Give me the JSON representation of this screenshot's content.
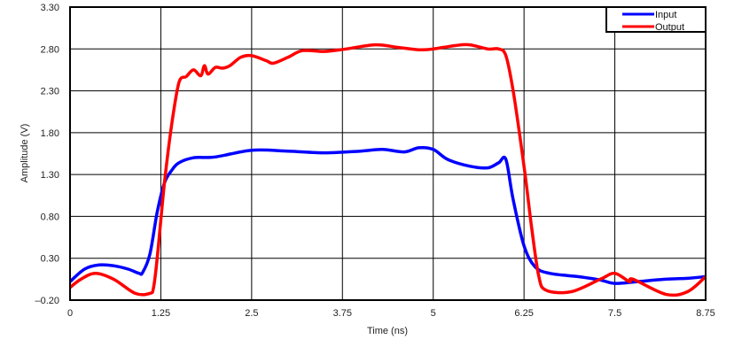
{
  "chart_data": {
    "type": "line",
    "title": "",
    "xlabel": "Time (ns)",
    "ylabel": "Amplitude (V)",
    "xlim": [
      0,
      8.75
    ],
    "ylim": [
      -0.2,
      3.3
    ],
    "grid": true,
    "legend_position": "top-right",
    "x_ticks": [
      "0",
      "1.25",
      "2.5",
      "3.75",
      "5",
      "6.25",
      "7.5",
      "8.75"
    ],
    "y_ticks": [
      "3.30",
      "2.80",
      "2.30",
      "1.80",
      "1.30",
      "0.80",
      "0.30",
      "-0.20"
    ],
    "series": [
      {
        "name": "Input",
        "color": "#0000ff",
        "x": [
          0,
          0.2,
          0.4,
          0.6,
          0.8,
          0.95,
          1.0,
          1.1,
          1.2,
          1.3,
          1.4,
          1.5,
          1.7,
          2.0,
          2.5,
          3.0,
          3.5,
          4.0,
          4.3,
          4.6,
          4.8,
          5.0,
          5.2,
          5.5,
          5.75,
          5.9,
          6.0,
          6.1,
          6.25,
          6.4,
          6.6,
          7.0,
          7.3,
          7.5,
          7.8,
          8.2,
          8.5,
          8.75
        ],
        "values": [
          0.02,
          0.17,
          0.22,
          0.21,
          0.17,
          0.12,
          0.13,
          0.35,
          0.85,
          1.2,
          1.35,
          1.44,
          1.5,
          1.51,
          1.59,
          1.58,
          1.56,
          1.58,
          1.6,
          1.57,
          1.62,
          1.6,
          1.48,
          1.4,
          1.38,
          1.44,
          1.48,
          1.0,
          0.45,
          0.2,
          0.12,
          0.08,
          0.04,
          0.0,
          0.02,
          0.05,
          0.06,
          0.08
        ]
      },
      {
        "name": "Output",
        "color": "#ff0000",
        "x": [
          0,
          0.15,
          0.35,
          0.6,
          0.9,
          1.1,
          1.15,
          1.2,
          1.3,
          1.4,
          1.5,
          1.6,
          1.7,
          1.8,
          1.85,
          1.9,
          2.0,
          2.1,
          2.2,
          2.35,
          2.5,
          2.7,
          2.8,
          3.0,
          3.2,
          3.5,
          3.8,
          4.2,
          4.5,
          4.8,
          5.0,
          5.3,
          5.5,
          5.75,
          5.9,
          6.0,
          6.1,
          6.25,
          6.35,
          6.45,
          6.55,
          6.9,
          7.3,
          7.5,
          7.7,
          7.75,
          8.2,
          8.5,
          8.75
        ],
        "values": [
          -0.05,
          0.05,
          0.12,
          0.05,
          -0.12,
          -0.12,
          -0.05,
          0.3,
          1.2,
          1.9,
          2.4,
          2.47,
          2.55,
          2.48,
          2.6,
          2.5,
          2.58,
          2.57,
          2.6,
          2.7,
          2.72,
          2.66,
          2.63,
          2.7,
          2.78,
          2.77,
          2.8,
          2.85,
          2.82,
          2.79,
          2.8,
          2.84,
          2.85,
          2.8,
          2.8,
          2.72,
          2.3,
          1.4,
          0.7,
          0.1,
          -0.08,
          -0.1,
          0.05,
          0.12,
          0.02,
          0.05,
          -0.13,
          -0.1,
          0.08
        ]
      }
    ]
  }
}
